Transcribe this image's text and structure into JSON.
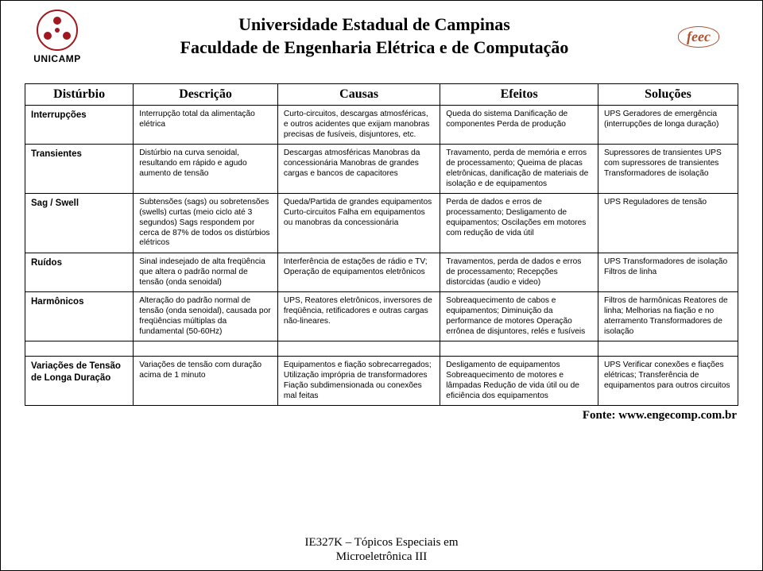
{
  "header": {
    "university": "Universidade Estadual de Campinas",
    "faculty": "Faculdade de Engenharia Elétrica e de Computação",
    "unicamp_label": "UNICAMP",
    "feec_label": "feec"
  },
  "table": {
    "columns": [
      "Distúrbio",
      "Descrição",
      "Causas",
      "Efeitos",
      "Soluções"
    ],
    "rows": [
      {
        "name": "Interrupções",
        "desc": "Interrupção total da alimentação elétrica",
        "causes": "Curto-circuitos, descargas atmosféricas, e outros acidentes que exijam manobras precisas de fusíveis, disjuntores, etc.",
        "effects": "Queda do sistema Danificação de componentes Perda de produção",
        "solutions": "UPS Geradores de emergência (interrupções de longa duração)"
      },
      {
        "name": "Transientes",
        "desc": "Distúrbio na curva senoidal, resultando em rápido e agudo aumento de tensão",
        "causes": "Descargas atmosféricas Manobras da concessionária Manobras de grandes cargas e bancos de capacitores",
        "effects": "Travamento, perda de memória e erros de processamento; Queima de placas eletrônicas, danificação de materiais de isolação e de equipamentos",
        "solutions": "Supressores de transientes UPS com supressores de transientes Transformadores de isolação"
      },
      {
        "name": "Sag / Swell",
        "desc": "Subtensões (sags) ou sobretensões (swells) curtas (meio ciclo até 3 segundos) Sags respondem por cerca de 87% de todos os distúrbios elétricos",
        "causes": "Queda/Partida de grandes equipamentos Curto-circuitos Falha em equipamentos ou manobras da concessionária",
        "effects": "Perda de dados e erros de processamento; Desligamento de equipamentos; Oscilações em motores com redução de vida útil",
        "solutions": "UPS Reguladores de tensão"
      },
      {
        "name": "Ruídos",
        "desc": "Sinal indesejado de alta freqüência que altera o padrão normal de tensão (onda senoidal)",
        "causes": "Interferência de estações de rádio e TV; Operação de equipamentos eletrônicos",
        "effects": "Travamentos, perda de dados e erros de processamento; Recepções distorcidas (audio e video)",
        "solutions": "UPS Transformadores de isolação Filtros de linha"
      },
      {
        "name": "Harmônicos",
        "desc": "Alteração do padrão normal de tensão (onda senoidal), causada por freqüências múltiplas da fundamental (50-60Hz)",
        "causes": "UPS, Reatores eletrônicos, inversores de freqüência, retificadores e outras cargas não-lineares.",
        "effects": "Sobreaquecimento de cabos e equipamentos; Diminuição da performance de motores Operação errônea de disjuntores, relés e fusíveis",
        "solutions": "Filtros de harmônicas Reatores de linha; Melhorias na fiação e no aterramento Transformadores de isolação"
      },
      {
        "name": "Variações de Tensão de Longa Duração",
        "desc": "Variações de tensão com duração acima de 1 minuto",
        "causes": "Equipamentos e fiação sobrecarregados; Utilização imprópria de transformadores Fiação subdimensionada ou conexões mal feitas",
        "effects": "Desligamento de equipamentos Sobreaquecimento de motores e lâmpadas Redução de vida útil ou de eficiência dos equipamentos",
        "solutions": "UPS Verificar conexões e fiações elétricas; Transferência de equipamentos para outros circuitos"
      }
    ]
  },
  "source_label": "Fonte: www.engecomp.com.br",
  "footer": {
    "line1": "IE327K – Tópicos Especiais em",
    "line2": "Microeletrônica III"
  }
}
